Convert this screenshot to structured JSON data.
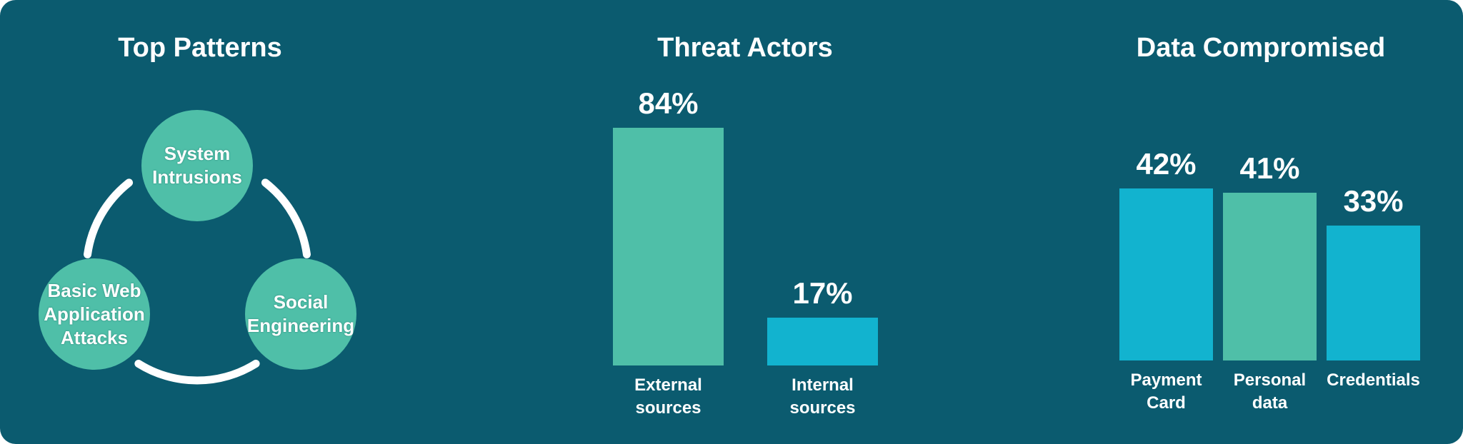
{
  "top_patterns": {
    "title": "Top Patterns",
    "nodes": [
      {
        "label": "System Intrusions"
      },
      {
        "label": "Social Engineering"
      },
      {
        "label": "Basic Web Application Attacks"
      }
    ]
  },
  "chart_data": [
    {
      "type": "bar",
      "title": "Threat Actors",
      "categories": [
        "External sources",
        "Internal sources"
      ],
      "values": [
        84,
        17
      ],
      "value_labels": [
        "84%",
        "17%"
      ],
      "colors": [
        "#4fbfa8",
        "#12b3cf"
      ]
    },
    {
      "type": "bar",
      "title": "Data Compromised",
      "categories": [
        "Payment Card",
        "Personal data",
        "Credentials"
      ],
      "values": [
        42,
        41,
        33
      ],
      "value_labels": [
        "42%",
        "41%",
        "33%"
      ],
      "colors": [
        "#12b3cf",
        "#4fbfa8",
        "#12b3cf"
      ]
    }
  ]
}
